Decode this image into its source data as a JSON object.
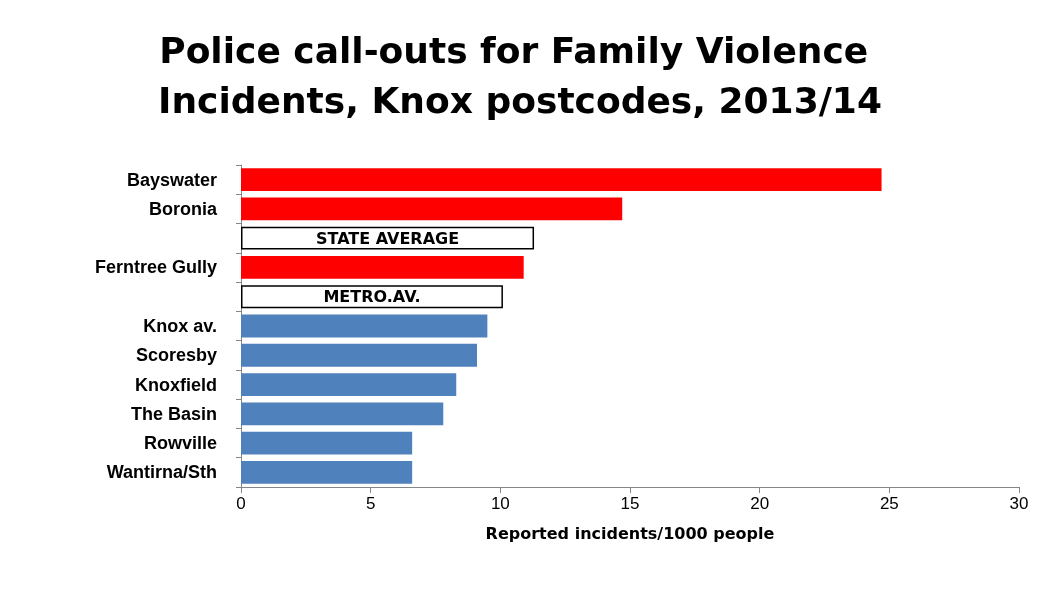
{
  "chart_data": {
    "type": "bar",
    "orientation": "horizontal",
    "title": "Police call-outs for Family Violence Incidents, Knox postcodes, 2013/14",
    "xlabel": "Reported incidents/1000 people",
    "categories": [
      "Bayswater",
      "Boronia",
      null,
      "Ferntree Gully",
      null,
      "Knox av.",
      "Scoresby",
      "Knoxfield",
      "The Basin",
      "Rowville",
      "Wantirna/Sth"
    ],
    "values": [
      24.7,
      14.7,
      11.3,
      10.9,
      10.1,
      9.5,
      9.1,
      8.3,
      7.8,
      6.6,
      6.6
    ],
    "colors": [
      "#ff0000",
      "#ff0000",
      "#ffffff",
      "#ff0000",
      "#ffffff",
      "#4f81bd",
      "#4f81bd",
      "#4f81bd",
      "#4f81bd",
      "#4f81bd",
      "#4f81bd"
    ],
    "value_labels": [
      null,
      null,
      "STATE AVERAGE",
      null,
      "METRO.AV.",
      null,
      null,
      null,
      null,
      null,
      null
    ],
    "xlim": [
      0,
      30
    ],
    "xticks": [
      0,
      5,
      10,
      15,
      20,
      25,
      30
    ]
  }
}
